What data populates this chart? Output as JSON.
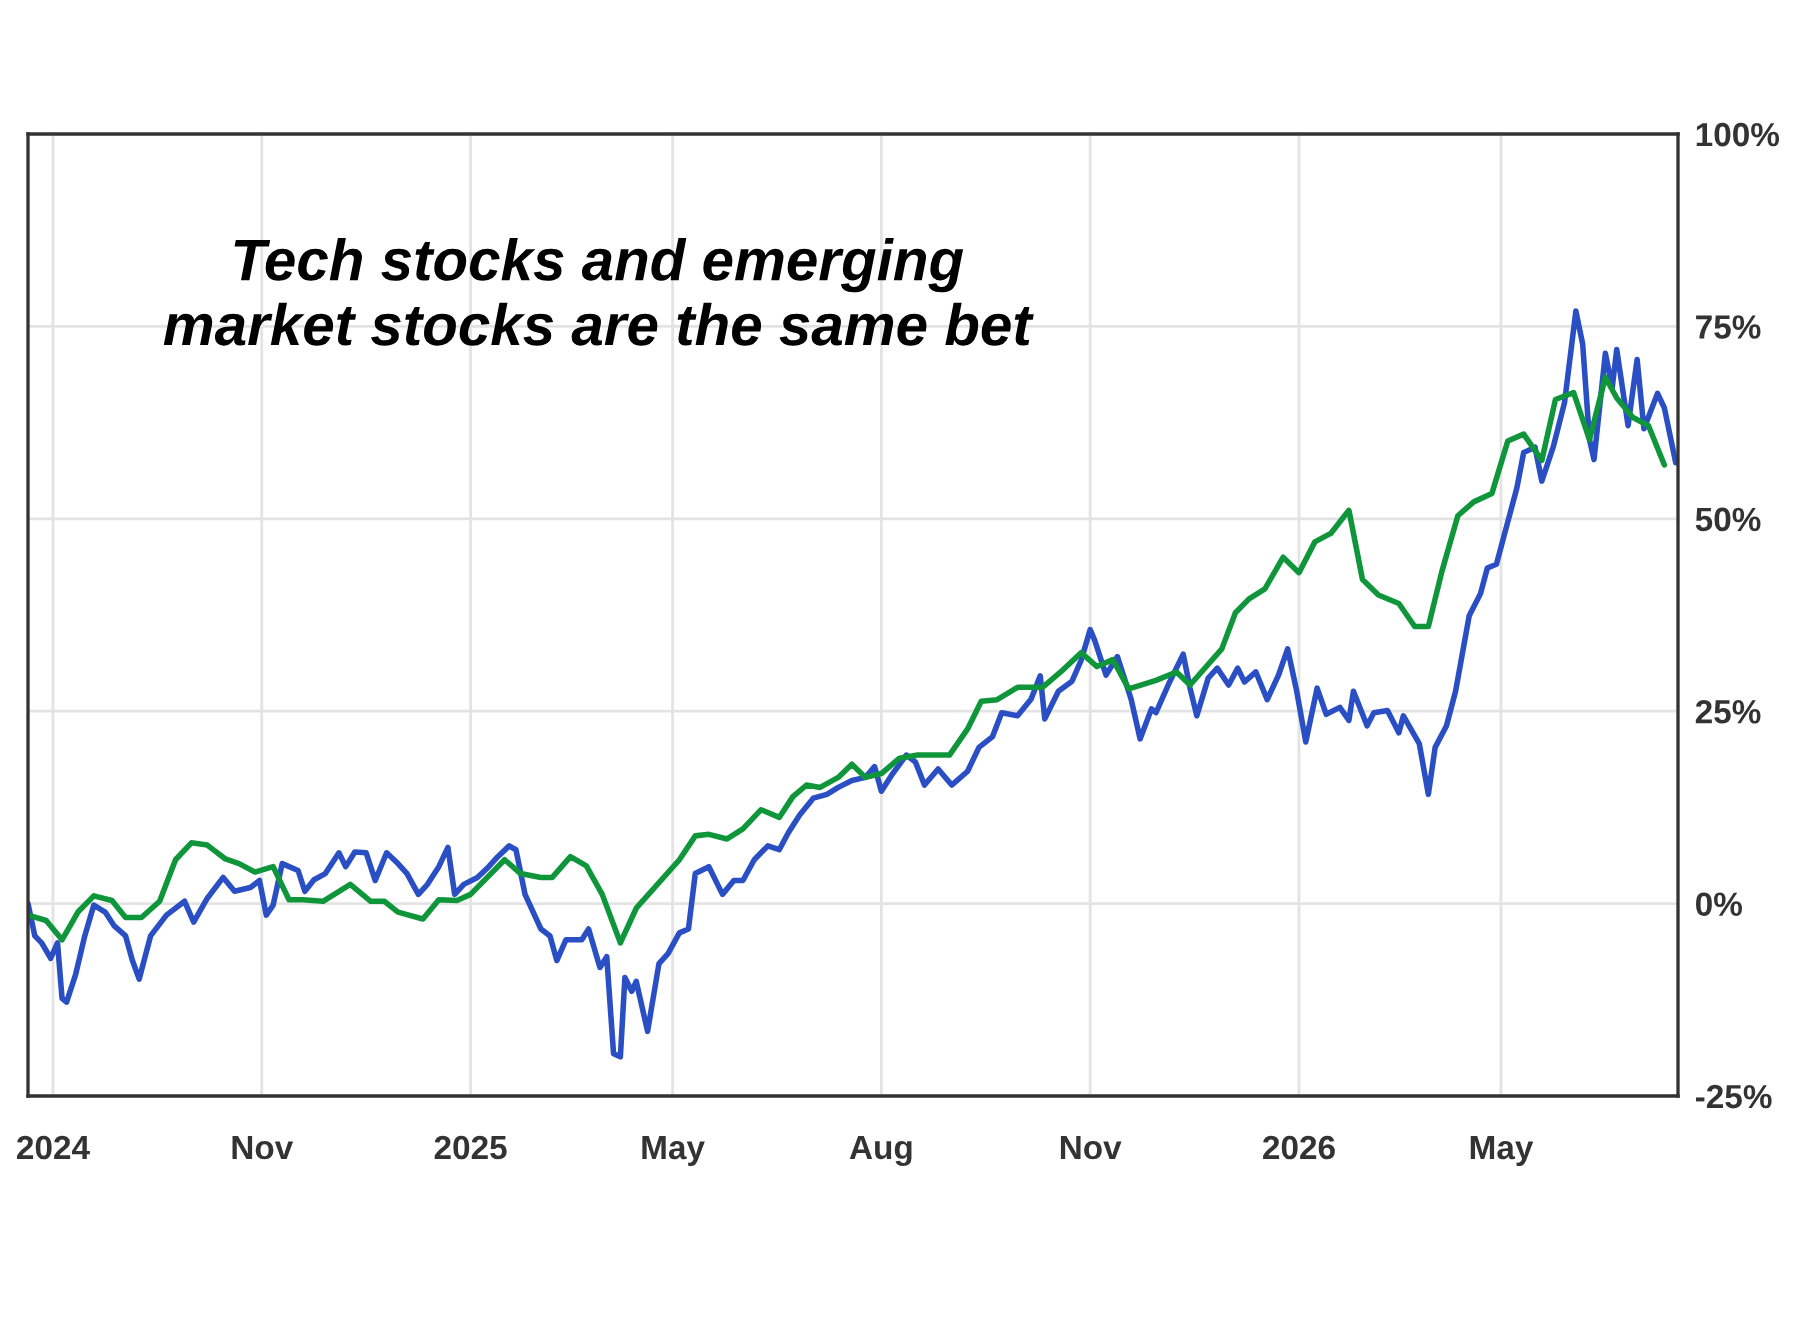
{
  "chart_data": {
    "type": "line",
    "annotations": [
      "Tech stocks and emerging\nmarket stocks are the same bet"
    ],
    "xlim": [
      "2024-07-21",
      "2026-07-18"
    ],
    "xticks": [
      {
        "value": "2024-08-01",
        "label": "2024"
      },
      {
        "value": "2024-11-01",
        "label": "Nov"
      },
      {
        "value": "2025-02-01",
        "label": "2025"
      },
      {
        "value": "2025-05-01",
        "label": "May"
      },
      {
        "value": "2025-08-01",
        "label": "Aug"
      },
      {
        "value": "2025-11-01",
        "label": "Nov"
      },
      {
        "value": "2026-02-01",
        "label": "2026"
      },
      {
        "value": "2026-05-01",
        "label": "May"
      }
    ],
    "ylim": [
      -25,
      100
    ],
    "yticks": [
      {
        "value": -25,
        "label": "-25%"
      },
      {
        "value": 0,
        "label": "0%"
      },
      {
        "value": 25,
        "label": "25%"
      },
      {
        "value": 50,
        "label": "50%"
      },
      {
        "value": 75,
        "label": "75%"
      },
      {
        "value": 100,
        "label": "100%"
      }
    ],
    "grid": true,
    "legend": false,
    "marker": "none",
    "line_style": "solid",
    "series": [
      {
        "color": "#2a4fc4",
        "x": [
          "2024-07-21",
          "2024-07-24",
          "2024-07-27",
          "2024-07-31",
          "2024-08-03",
          "2024-08-05",
          "2024-08-07",
          "2024-08-11",
          "2024-08-15",
          "2024-08-19",
          "2024-08-24",
          "2024-08-28",
          "2024-09-02",
          "2024-09-05",
          "2024-09-08",
          "2024-09-13",
          "2024-09-20",
          "2024-09-28",
          "2024-10-02",
          "2024-10-08",
          "2024-10-15",
          "2024-10-20",
          "2024-10-27",
          "2024-10-31",
          "2024-11-03",
          "2024-11-06",
          "2024-11-10",
          "2024-11-17",
          "2024-11-20",
          "2024-11-24",
          "2024-11-29",
          "2024-12-05",
          "2024-12-08",
          "2024-12-12",
          "2024-12-17",
          "2024-12-21",
          "2024-12-26",
          "2024-12-31",
          "2025-01-04",
          "2025-01-09",
          "2025-01-13",
          "2025-01-18",
          "2025-01-22",
          "2025-01-25",
          "2025-01-29",
          "2025-02-04",
          "2025-02-09",
          "2025-02-13",
          "2025-02-18",
          "2025-02-21",
          "2025-02-25",
          "2025-03-04",
          "2025-03-08",
          "2025-03-11",
          "2025-03-15",
          "2025-03-22",
          "2025-03-25",
          "2025-03-30",
          "2025-04-02",
          "2025-04-05",
          "2025-04-08",
          "2025-04-10",
          "2025-04-13",
          "2025-04-15",
          "2025-04-20",
          "2025-04-25",
          "2025-04-29",
          "2025-05-04",
          "2025-05-08",
          "2025-05-11",
          "2025-05-17",
          "2025-05-23",
          "2025-05-28",
          "2025-06-01",
          "2025-06-06",
          "2025-06-12",
          "2025-06-17",
          "2025-06-21",
          "2025-06-26",
          "2025-07-02",
          "2025-07-08",
          "2025-07-13",
          "2025-07-19",
          "2025-07-25",
          "2025-07-29",
          "2025-08-01",
          "2025-08-06",
          "2025-08-12",
          "2025-08-16",
          "2025-08-20",
          "2025-08-26",
          "2025-09-01",
          "2025-09-08",
          "2025-09-13",
          "2025-09-19",
          "2025-09-23",
          "2025-09-30",
          "2025-10-06",
          "2025-10-10",
          "2025-10-12",
          "2025-10-18",
          "2025-10-24",
          "2025-10-28",
          "2025-11-01",
          "2025-11-03",
          "2025-11-08",
          "2025-11-13",
          "2025-11-19",
          "2025-11-23",
          "2025-11-28",
          "2025-11-30",
          "2025-12-06",
          "2025-12-12",
          "2025-12-15",
          "2025-12-18",
          "2025-12-23",
          "2025-12-27",
          "2026-01-01",
          "2026-01-05",
          "2026-01-08",
          "2026-01-13",
          "2026-01-18",
          "2026-01-23",
          "2026-01-27",
          "2026-01-31",
          "2026-02-04",
          "2026-02-09",
          "2026-02-13",
          "2026-02-19",
          "2026-02-23",
          "2026-02-25",
          "2026-03-03",
          "2026-03-06",
          "2026-03-12",
          "2026-03-17",
          "2026-03-19",
          "2026-03-26",
          "2026-03-30",
          "2026-04-02",
          "2026-04-07",
          "2026-04-11",
          "2026-04-17",
          "2026-04-22",
          "2026-04-25",
          "2026-04-29",
          "2026-05-04",
          "2026-05-08",
          "2026-05-11",
          "2026-05-16",
          "2026-05-19",
          "2026-05-24",
          "2026-05-29",
          "2026-06-03",
          "2026-06-06",
          "2026-06-09",
          "2026-06-11",
          "2026-06-16",
          "2026-06-19",
          "2026-06-21",
          "2026-06-26",
          "2026-06-30",
          "2026-07-03",
          "2026-07-09",
          "2026-07-12",
          "2026-07-17"
        ],
        "values": [
          0,
          -4.2,
          -5.1,
          -7.1,
          -5.1,
          -12.3,
          -12.8,
          -9.2,
          -4.2,
          -0.2,
          -1.1,
          -2.9,
          -4.2,
          -7.4,
          -9.8,
          -4.2,
          -1.5,
          0.3,
          -2.4,
          0.7,
          3.4,
          1.6,
          2.1,
          3.0,
          -1.5,
          -0.2,
          5.2,
          4.3,
          1.6,
          3.1,
          3.9,
          6.6,
          4.8,
          6.7,
          6.6,
          3.0,
          6.6,
          5.2,
          3.9,
          1.2,
          2.5,
          4.8,
          7.3,
          1.2,
          2.5,
          3.4,
          4.8,
          6.1,
          7.5,
          7.0,
          1.2,
          -3.3,
          -4.2,
          -7.4,
          -4.7,
          -4.7,
          -3.3,
          -8.3,
          -6.9,
          -19.5,
          -19.9,
          -9.6,
          -11.4,
          -10.1,
          -16.6,
          -7.8,
          -6.5,
          -3.8,
          -3.3,
          3.9,
          4.8,
          1.2,
          3.0,
          3.0,
          5.7,
          7.5,
          7.0,
          9.2,
          11.5,
          13.7,
          14.2,
          15.1,
          16.0,
          16.4,
          17.8,
          14.6,
          16.9,
          19.3,
          18.4,
          15.4,
          17.5,
          15.4,
          17.2,
          20.3,
          21.7,
          24.8,
          24.4,
          26.6,
          29.6,
          24.0,
          27.6,
          28.9,
          31.6,
          35.6,
          34.2,
          29.7,
          32.1,
          26.6,
          21.4,
          25.3,
          24.8,
          28.8,
          32.4,
          28.0,
          24.4,
          29.3,
          30.6,
          28.4,
          30.6,
          28.8,
          30.1,
          26.5,
          29.7,
          33.1,
          27.6,
          21.0,
          28.0,
          24.6,
          25.5,
          23.8,
          27.6,
          23.1,
          24.8,
          25.1,
          22.2,
          24.4,
          20.8,
          14.2,
          20.3,
          23.1,
          27.6,
          37.4,
          40.3,
          43.6,
          44.1,
          49.6,
          54.0,
          58.6,
          59.3,
          54.9,
          59.3,
          65.1,
          77.0,
          72.7,
          60.3,
          57.7,
          71.5,
          67.0,
          72.0,
          62.1,
          70.7,
          61.7,
          66.3,
          64.4,
          57.3
        ]
      },
      {
        "color": "#10963a",
        "x": [
          "2024-07-21",
          "2024-07-29",
          "2024-08-05",
          "2024-08-12",
          "2024-08-19",
          "2024-08-27",
          "2024-09-02",
          "2024-09-09",
          "2024-09-17",
          "2024-09-24",
          "2024-10-01",
          "2024-10-08",
          "2024-10-16",
          "2024-10-22",
          "2024-10-29",
          "2024-11-06",
          "2024-11-13",
          "2024-11-19",
          "2024-11-28",
          "2024-12-10",
          "2024-12-19",
          "2024-12-25",
          "2024-12-31",
          "2025-01-11",
          "2025-01-18",
          "2025-01-26",
          "2025-02-01",
          "2025-02-16",
          "2025-02-23",
          "2025-03-04",
          "2025-03-09",
          "2025-03-17",
          "2025-03-24",
          "2025-03-31",
          "2025-04-08",
          "2025-04-15",
          "2025-05-04",
          "2025-05-11",
          "2025-05-17",
          "2025-05-25",
          "2025-06-01",
          "2025-06-09",
          "2025-06-17",
          "2025-06-23",
          "2025-06-29",
          "2025-07-05",
          "2025-07-13",
          "2025-07-19",
          "2025-07-25",
          "2025-08-01",
          "2025-08-09",
          "2025-08-17",
          "2025-08-31",
          "2025-09-08",
          "2025-09-14",
          "2025-09-21",
          "2025-09-30",
          "2025-10-11",
          "2025-10-19",
          "2025-10-28",
          "2025-11-04",
          "2025-11-11",
          "2025-11-18",
          "2025-11-30",
          "2025-12-09",
          "2025-12-15",
          "2025-12-29",
          "2026-01-04",
          "2026-01-10",
          "2026-01-17",
          "2026-01-25",
          "2026-02-01",
          "2026-02-08",
          "2026-02-15",
          "2026-02-23",
          "2026-03-01",
          "2026-03-08",
          "2026-03-17",
          "2026-03-24",
          "2026-03-30",
          "2026-04-05",
          "2026-04-12",
          "2026-04-19",
          "2026-04-27",
          "2026-05-04",
          "2026-05-11",
          "2026-05-19",
          "2026-05-25",
          "2026-06-02",
          "2026-06-09",
          "2026-06-16",
          "2026-06-21",
          "2026-06-28",
          "2026-07-05",
          "2026-07-12"
        ],
        "values": [
          -1.5,
          -2.2,
          -4.7,
          -1.1,
          1.0,
          0.4,
          -1.8,
          -1.8,
          0.3,
          5.7,
          7.9,
          7.6,
          5.8,
          5.2,
          4.1,
          4.8,
          0.5,
          0.5,
          0.3,
          2.5,
          0.3,
          0.3,
          -1.1,
          -2.0,
          0.5,
          0.4,
          1.2,
          5.7,
          3.9,
          3.4,
          3.4,
          6.1,
          4.9,
          1.2,
          -5.1,
          -0.6,
          5.7,
          8.8,
          9.0,
          8.4,
          9.7,
          12.2,
          11.2,
          13.9,
          15.4,
          15.1,
          16.4,
          18.1,
          16.4,
          16.9,
          18.9,
          19.3,
          19.3,
          22.7,
          26.3,
          26.5,
          28.1,
          28.1,
          30.1,
          32.6,
          30.8,
          31.7,
          27.9,
          29.0,
          30.1,
          28.4,
          33.1,
          37.8,
          39.6,
          40.9,
          45.0,
          43.0,
          47.0,
          48.1,
          51.1,
          42.1,
          40.1,
          39.0,
          36.0,
          36.0,
          43.2,
          50.4,
          52.2,
          53.3,
          60.1,
          61.0,
          57.6,
          65.5,
          66.4,
          60.3,
          68.4,
          65.7,
          63.2,
          62.1,
          57.0
        ]
      }
    ]
  }
}
